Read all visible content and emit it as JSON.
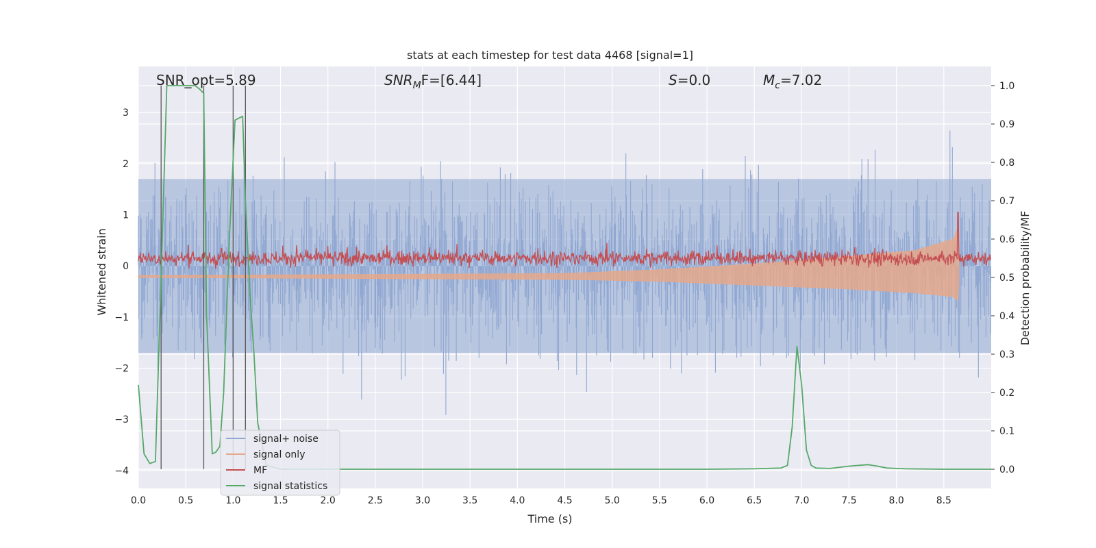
{
  "chart_data": {
    "type": "line",
    "title": "stats at each timestep for test data 4468 [signal=1]",
    "xlabel": "Time (s)",
    "ylabel": "Whitened strain",
    "ylabel_right": "Detection probability/MF",
    "xlim": [
      0.0,
      9.0
    ],
    "ylim": [
      -4.35,
      3.9
    ],
    "ylim_right": [
      -0.05,
      1.05
    ],
    "grid": true,
    "legend_position": "lower-left",
    "x_ticks": [
      "0.0",
      "0.5",
      "1.0",
      "1.5",
      "2.0",
      "2.5",
      "3.0",
      "3.5",
      "4.0",
      "4.5",
      "5.0",
      "5.5",
      "6.0",
      "6.5",
      "7.0",
      "7.5",
      "8.0",
      "8.5"
    ],
    "y_ticks": [
      "3",
      "2",
      "1",
      "0",
      "−1",
      "−2",
      "−3",
      "−4"
    ],
    "y_ticks_right": [
      "1.0",
      "0.9",
      "0.8",
      "0.7",
      "0.6",
      "0.5",
      "0.4",
      "0.3",
      "0.2",
      "0.1",
      "0.0"
    ],
    "annotations": {
      "snr_opt": {
        "prefix": "SNR_opt=",
        "value": "5.89"
      },
      "snr_mf": {
        "base": "SNR",
        "sub": "M",
        "rest": "F=[6.44]"
      },
      "s": {
        "var": "S",
        "rest": "=0.0"
      },
      "mc": {
        "base": "M",
        "sub": "c",
        "rest": "=7.02"
      }
    },
    "vertical_lines_x": [
      0.24,
      0.69,
      1.0,
      1.13
    ],
    "series": [
      {
        "name": "signal+ noise",
        "color": "#8fa7d1",
        "axis": "left",
        "envelope_approx": [
          -3.2,
          3.4
        ],
        "samples": 1800
      },
      {
        "name": "signal only",
        "color": "#e5a88b",
        "axis": "right",
        "x": [
          0.0,
          4.5,
          5.5,
          6.5,
          7.5,
          8.2,
          8.6,
          8.65,
          8.66
        ],
        "y_max": [
          0.505,
          0.51,
          0.52,
          0.535,
          0.555,
          0.57,
          0.6,
          0.63,
          0.5
        ],
        "y_min": [
          0.5,
          0.495,
          0.49,
          0.48,
          0.47,
          0.46,
          0.45,
          0.44,
          0.5
        ]
      },
      {
        "name": "MF",
        "color": "#c44e52",
        "axis": "right",
        "baseline_approx": 0.55,
        "peak": {
          "x": 8.65,
          "y": 0.67
        }
      },
      {
        "name": "signal statistics",
        "color": "#55a868",
        "axis": "right",
        "x": [
          0.0,
          0.06,
          0.12,
          0.18,
          0.24,
          0.3,
          0.4,
          0.5,
          0.6,
          0.65,
          0.69,
          0.72,
          0.78,
          0.82,
          0.86,
          0.9,
          0.96,
          1.02,
          1.06,
          1.1,
          1.13,
          1.18,
          1.22,
          1.26,
          1.35,
          1.5,
          2.0,
          3.0,
          4.0,
          5.0,
          6.0,
          6.5,
          6.78,
          6.85,
          6.9,
          6.95,
          7.0,
          7.05,
          7.1,
          7.15,
          7.3,
          7.5,
          7.6,
          7.7,
          7.8,
          7.9,
          8.1,
          8.5,
          9.0
        ],
        "y": [
          0.22,
          0.04,
          0.015,
          0.02,
          0.5,
          1.0,
          1.0,
          1.0,
          1.0,
          0.99,
          0.98,
          0.4,
          0.04,
          0.045,
          0.06,
          0.2,
          0.6,
          0.91,
          0.915,
          0.92,
          0.7,
          0.45,
          0.3,
          0.12,
          0.01,
          0.0,
          0.0,
          0.0,
          0.0,
          0.0,
          0.0,
          0.001,
          0.003,
          0.01,
          0.11,
          0.32,
          0.22,
          0.05,
          0.01,
          0.003,
          0.002,
          0.008,
          0.01,
          0.012,
          0.008,
          0.003,
          0.001,
          0.0,
          0.0
        ]
      }
    ]
  }
}
